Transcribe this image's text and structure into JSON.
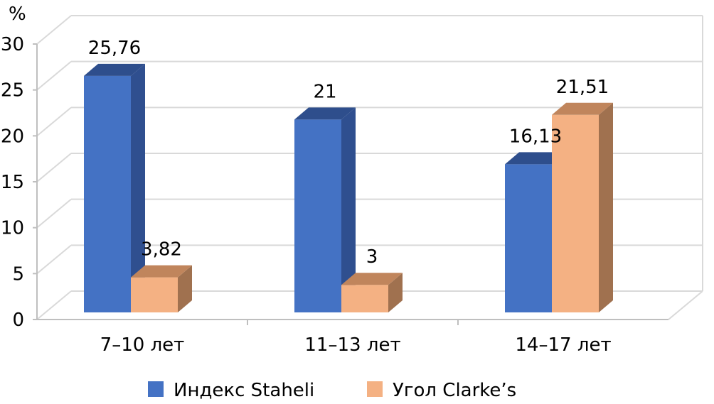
{
  "chart_data": {
    "type": "bar",
    "unit_label": "%",
    "categories": [
      "7–10 лет",
      "11–13 лет",
      "14–17 лет"
    ],
    "series": [
      {
        "name": "Индекс Staheli",
        "values": [
          25.76,
          21,
          16.13
        ],
        "labels": [
          "25,76",
          "21",
          "16,13"
        ],
        "color": "#4472C4",
        "color_side": "#2F4F8F",
        "color_top": "#2E4E8C"
      },
      {
        "name": "Угол Clarke’s",
        "values": [
          3.82,
          3,
          21.51
        ],
        "labels": [
          "3,82",
          "3",
          "21,51"
        ],
        "color": "#F4B183",
        "color_side": "#A0714F",
        "color_top": "#C0855C"
      }
    ],
    "yticks": [
      "0",
      "5",
      "10",
      "15",
      "20",
      "25",
      "30"
    ],
    "ylim": [
      0,
      30
    ],
    "grid": true,
    "legend_position": "bottom",
    "three_d": true
  }
}
